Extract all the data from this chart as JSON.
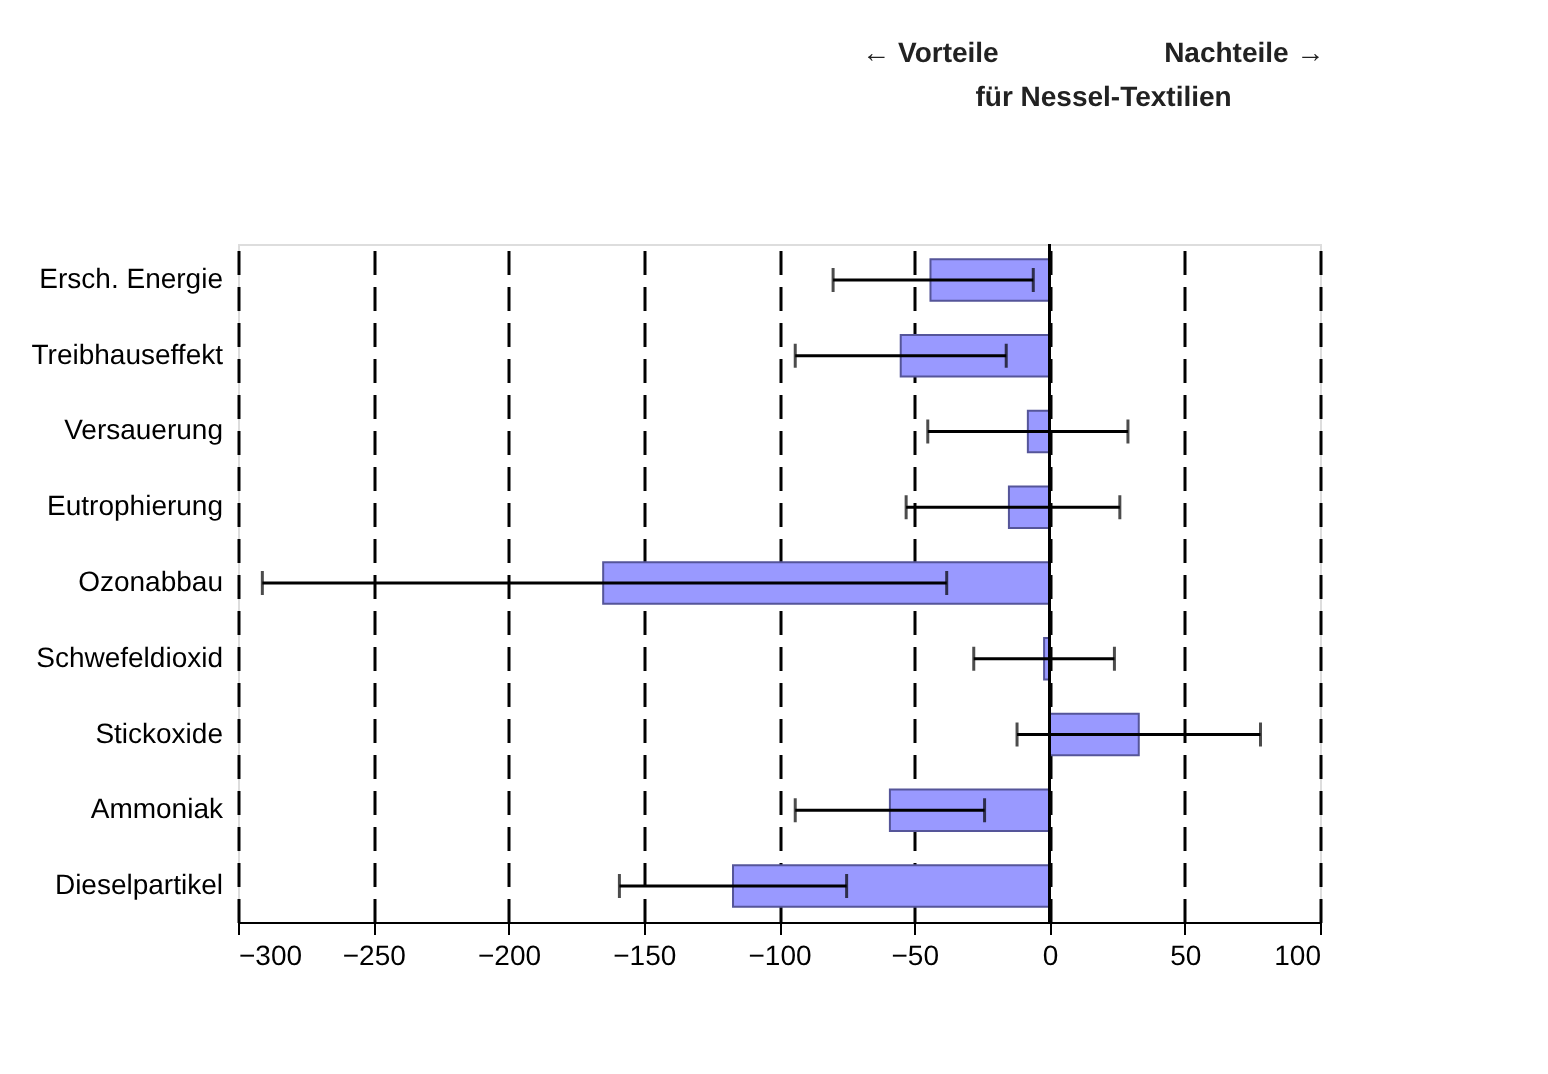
{
  "chart_data": {
    "type": "bar",
    "orientation": "horizontal",
    "annotations": [
      "←  Vorteile",
      "Nachteile  →",
      "für Nessel-Textilien"
    ],
    "categories": [
      "Ersch. Energie",
      "Treibhauseffekt",
      "Versauerung",
      "Eutrophierung",
      "Ozonabbau",
      "Schwefeldioxid",
      "Stickoxide",
      "Ammoniak",
      "Dieselpartikel"
    ],
    "values": [
      -44,
      -55,
      -8,
      -15,
      -165,
      -2,
      33,
      -59,
      -117
    ],
    "errors": [
      [
        -80,
        -6
      ],
      [
        -94,
        -16
      ],
      [
        -45,
        29
      ],
      [
        -53,
        26
      ],
      [
        -291,
        -38
      ],
      [
        -28,
        24
      ],
      [
        -12,
        78
      ],
      [
        -94,
        -24
      ],
      [
        -159,
        -75
      ]
    ],
    "color": "#9999ff",
    "xlim": [
      -300,
      100
    ],
    "xticks": [
      -300,
      -250,
      -200,
      -150,
      -100,
      -50,
      0,
      50,
      100
    ],
    "grid": "x"
  }
}
